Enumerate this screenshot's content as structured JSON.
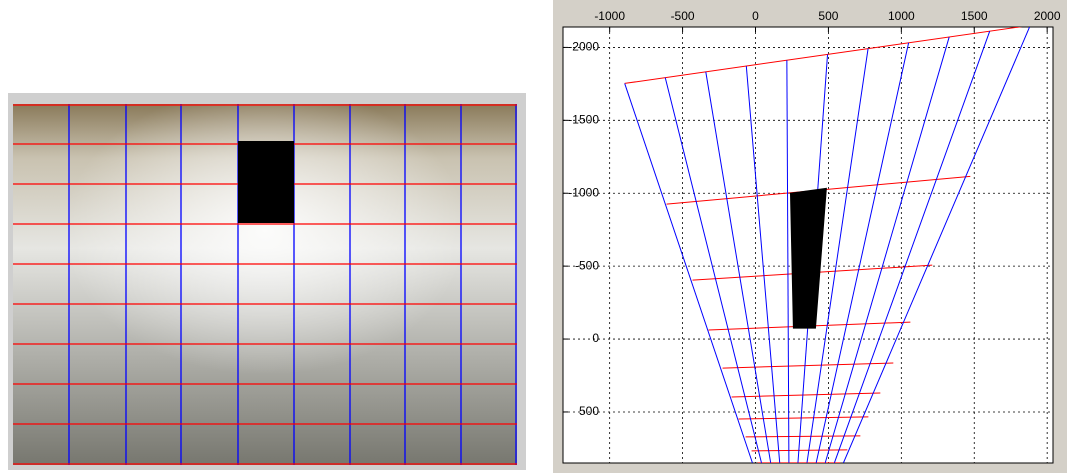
{
  "chart_data": {
    "type": "line",
    "xlim": [
      -1320,
      2040
    ],
    "ylim": [
      -2140,
      850
    ],
    "y_reversed": true,
    "x_axis_position": "top",
    "xticks": [
      -1000,
      -500,
      0,
      500,
      1000,
      1500,
      2000
    ],
    "yticks": [
      -2000,
      -1500,
      -1000,
      -500,
      0,
      500
    ],
    "grid": true,
    "series": [
      {
        "color": "#ff0000",
        "x": [
          -897,
          1884
        ],
        "y": [
          -1753,
          -2151
        ]
      },
      {
        "color": "#ff0000",
        "x": [
          -610,
          1473
        ],
        "y": [
          -925,
          -1116
        ]
      },
      {
        "color": "#ff0000",
        "x": [
          -432,
          1212
        ],
        "y": [
          -404,
          -507
        ]
      },
      {
        "color": "#ff0000",
        "x": [
          -322,
          1062
        ],
        "y": [
          -62,
          -116
        ]
      },
      {
        "color": "#ff0000",
        "x": [
          -226,
          945
        ],
        "y": [
          199,
          164
        ]
      },
      {
        "color": "#ff0000",
        "x": [
          -164,
          856
        ],
        "y": [
          397,
          370
        ]
      },
      {
        "color": "#ff0000",
        "x": [
          -116,
          774
        ],
        "y": [
          548,
          534
        ]
      },
      {
        "color": "#ff0000",
        "x": [
          -68,
          719
        ],
        "y": [
          671,
          664
        ]
      },
      {
        "color": "#ff0000",
        "x": [
          -27,
          630
        ],
        "y": [
          767,
          760
        ]
      },
      {
        "color": "#ff0000",
        "x": [
          14,
          582
        ],
        "y": [
          849,
          849
        ]
      },
      {
        "color": "#0000ff",
        "x": [
          -897,
          -21
        ],
        "y": [
          -1753,
          849
        ]
      },
      {
        "color": "#0000ff",
        "x": [
          -619,
          41
        ],
        "y": [
          -1793,
          849
        ]
      },
      {
        "color": "#0000ff",
        "x": [
          -341,
          104
        ],
        "y": [
          -1833,
          849
        ]
      },
      {
        "color": "#0000ff",
        "x": [
          -63,
          166
        ],
        "y": [
          -1872,
          849
        ]
      },
      {
        "color": "#0000ff",
        "x": [
          215,
          229
        ],
        "y": [
          -1912,
          849
        ]
      },
      {
        "color": "#0000ff",
        "x": [
          494,
          291
        ],
        "y": [
          -1952,
          849
        ]
      },
      {
        "color": "#0000ff",
        "x": [
          772,
          353
        ],
        "y": [
          -1992,
          849
        ]
      },
      {
        "color": "#0000ff",
        "x": [
          1050,
          416
        ],
        "y": [
          -2032,
          849
        ]
      },
      {
        "color": "#0000ff",
        "x": [
          1328,
          478
        ],
        "y": [
          -2071,
          849
        ]
      },
      {
        "color": "#0000ff",
        "x": [
          1606,
          541
        ],
        "y": [
          -2111,
          849
        ]
      },
      {
        "color": "#0000ff",
        "x": [
          1884,
          603
        ],
        "y": [
          -2151,
          849
        ]
      },
      {
        "color": "#000000",
        "fill": true,
        "x": [
          240,
          486,
          411,
          260
        ],
        "y": [
          -1000,
          -1034,
          -75,
          -75
        ]
      }
    ]
  }
}
